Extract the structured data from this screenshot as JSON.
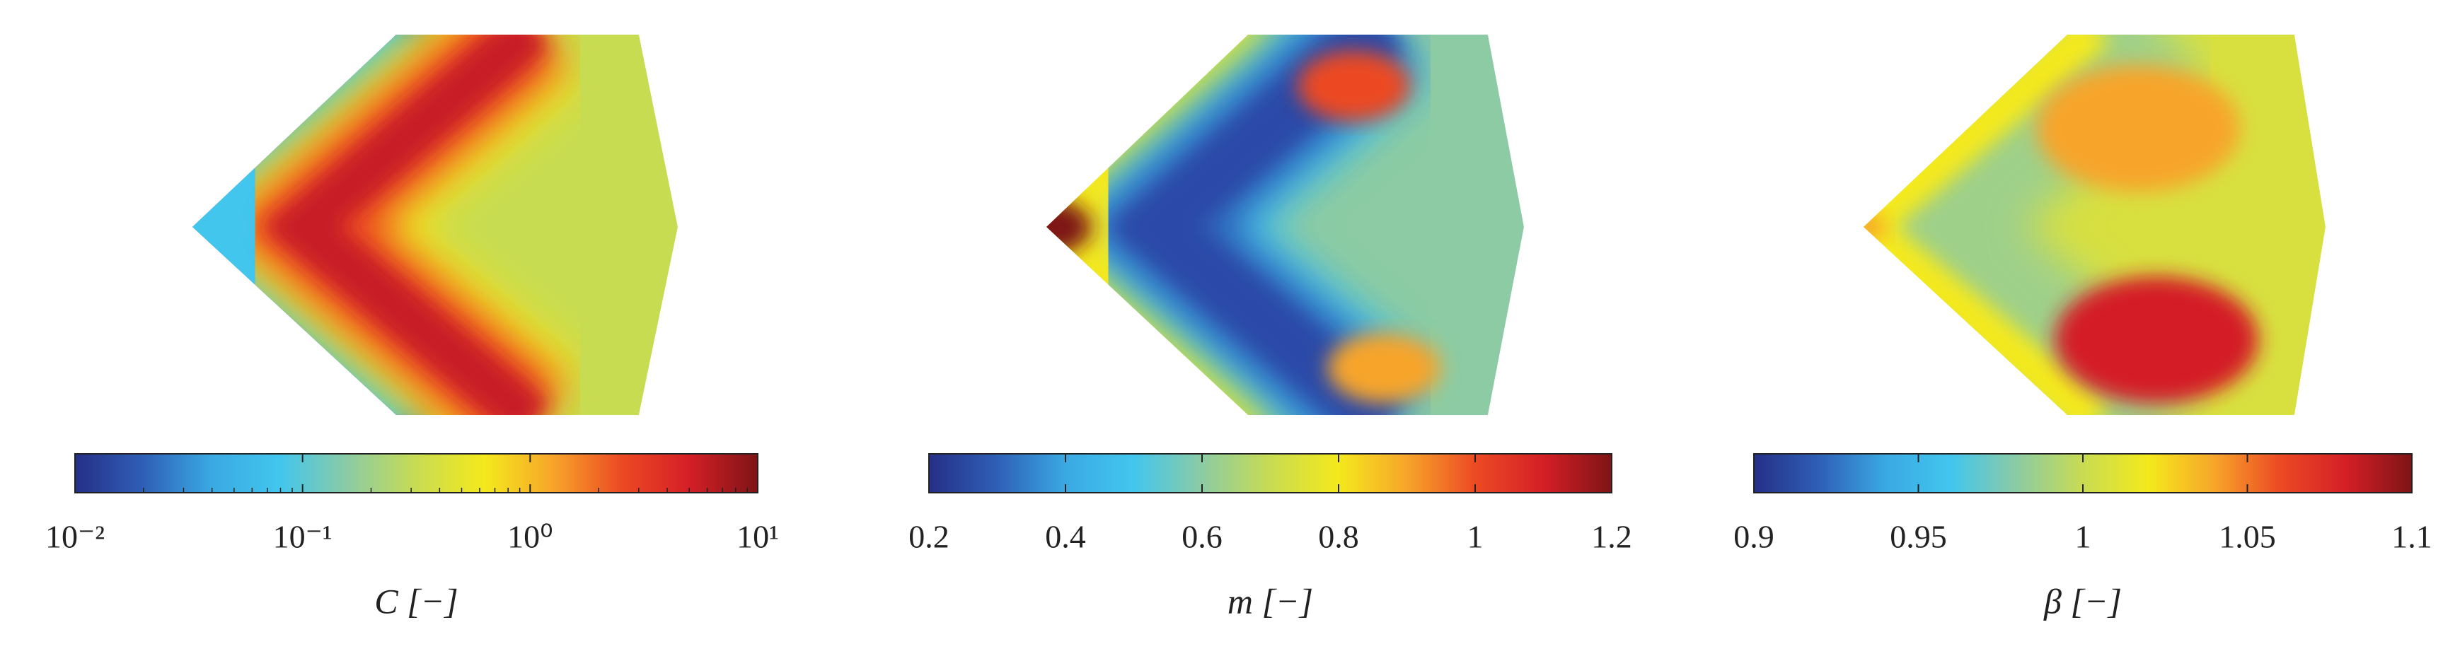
{
  "chart_data": [
    {
      "type": "heatmap",
      "colorbar_label": "C [−]",
      "log_scale": true,
      "xlim": [
        0.01,
        10
      ],
      "xticks": [
        {
          "value": 0.01,
          "label": "10⁻²"
        },
        {
          "value": 0.1,
          "label": "10⁻¹"
        },
        {
          "value": 1,
          "label": "10⁰"
        },
        {
          "value": 10,
          "label": "10¹"
        }
      ],
      "colormap": [
        "#262f86",
        "#2f5fb7",
        "#3aa9e3",
        "#42c6ee",
        "#8ccba3",
        "#c8dc52",
        "#f4e91c",
        "#f7a52a",
        "#ec4a24",
        "#d41f26",
        "#7e1416"
      ]
    },
    {
      "type": "heatmap",
      "colorbar_label": "m [−]",
      "log_scale": false,
      "xlim": [
        0.2,
        1.2
      ],
      "xticks": [
        0.2,
        0.4,
        0.6,
        0.8,
        1,
        1.2
      ],
      "colormap": [
        "#262f86",
        "#2f5fb7",
        "#3aa9e3",
        "#42c6ee",
        "#8ccba3",
        "#c8dc52",
        "#f4e91c",
        "#f7a52a",
        "#ec4a24",
        "#d41f26",
        "#7e1416"
      ]
    },
    {
      "type": "heatmap",
      "colorbar_label": "β [−]",
      "log_scale": false,
      "xlim": [
        0.9,
        1.1
      ],
      "xticks": [
        0.9,
        0.95,
        1,
        1.05,
        1.1
      ],
      "colormap": [
        "#262f86",
        "#2f5fb7",
        "#3aa9e3",
        "#42c6ee",
        "#8ccba3",
        "#c8dc52",
        "#f4e91c",
        "#f7a52a",
        "#ec4a24",
        "#d41f26",
        "#7e1416"
      ]
    }
  ]
}
